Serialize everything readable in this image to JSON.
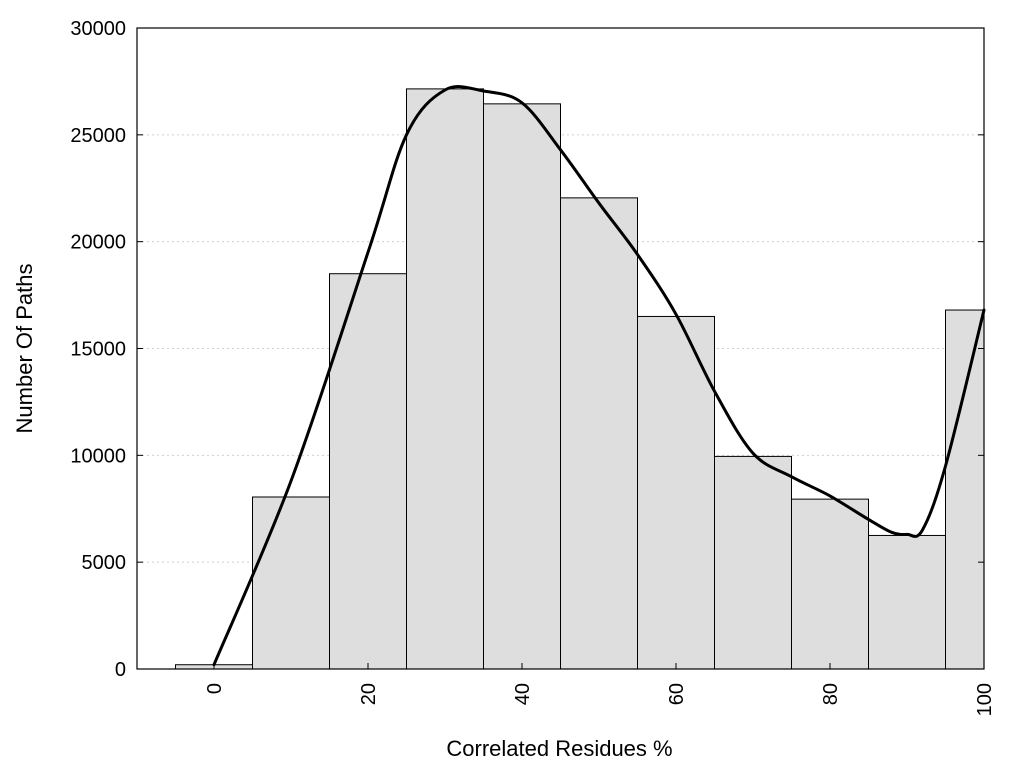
{
  "chart_data": {
    "type": "bar",
    "title": "",
    "xlabel": "Correlated Residues %",
    "ylabel": "Number Of Paths",
    "x": [
      0,
      10,
      20,
      30,
      40,
      50,
      60,
      70,
      80,
      90,
      100
    ],
    "values": [
      200,
      8050,
      18500,
      27150,
      26450,
      22050,
      16500,
      9950,
      7950,
      6250,
      16800
    ],
    "bin_width": 10,
    "xlim": [
      -10,
      100
    ],
    "ylim": [
      0,
      30000
    ],
    "x_ticks": [
      0,
      20,
      40,
      60,
      80,
      100
    ],
    "y_ticks": [
      0,
      5000,
      10000,
      15000,
      20000,
      25000,
      30000
    ],
    "grid": "horizontal dotted",
    "bar_color": "#dedede",
    "curve": {
      "x": [
        0,
        10,
        20,
        25,
        30,
        35,
        40,
        45,
        50,
        55,
        60,
        65,
        70,
        75,
        80,
        85,
        88,
        90,
        92,
        95,
        100
      ],
      "y": [
        200,
        8800,
        19500,
        25000,
        27100,
        27050,
        26500,
        24300,
        21800,
        19400,
        16600,
        13000,
        10100,
        9000,
        8100,
        7000,
        6400,
        6300,
        6500,
        9500,
        16800
      ],
      "color": "#000000"
    }
  }
}
